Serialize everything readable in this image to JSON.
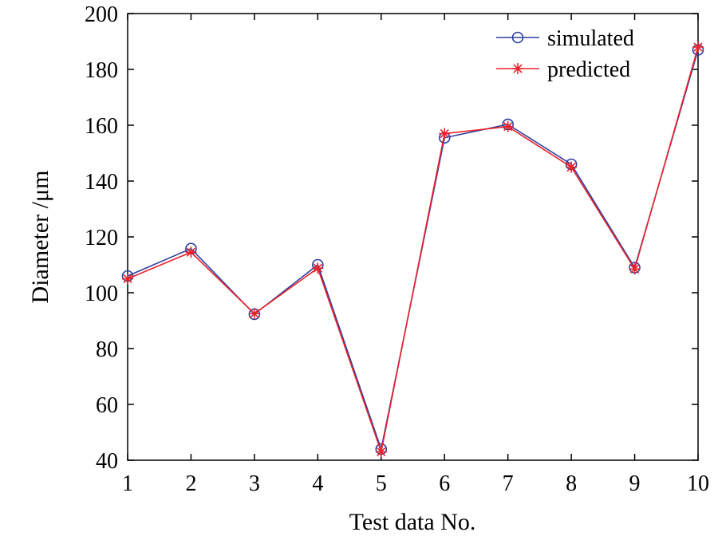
{
  "chart_data": {
    "type": "line",
    "title": "",
    "xlabel": "Test data No.",
    "ylabel": "Diameter /μm",
    "x": [
      1,
      2,
      3,
      4,
      5,
      6,
      7,
      8,
      9,
      10
    ],
    "xlim": [
      1,
      10
    ],
    "ylim": [
      40,
      200
    ],
    "xticks": [
      "1",
      "2",
      "3",
      "4",
      "5",
      "6",
      "7",
      "8",
      "9",
      "10"
    ],
    "yticks": [
      "40",
      "60",
      "80",
      "100",
      "120",
      "140",
      "160",
      "180",
      "200"
    ],
    "grid": false,
    "legend_position": "top-right",
    "series": [
      {
        "name": "simulated",
        "marker": "circle",
        "color": "#2f3fa0",
        "values": [
          106,
          115.8,
          92.3,
          110,
          44,
          155.5,
          160.3,
          146,
          109,
          187
        ]
      },
      {
        "name": "predicted",
        "marker": "star",
        "color": "#e8232a",
        "values": [
          105,
          114.5,
          92.5,
          108.8,
          43,
          157,
          159.5,
          145,
          108.5,
          188
        ]
      }
    ]
  }
}
